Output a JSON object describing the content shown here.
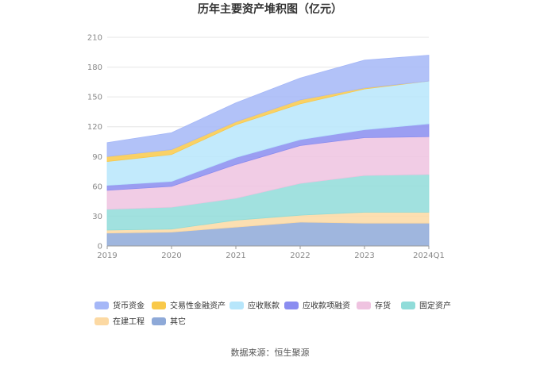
{
  "chart_data": {
    "type": "area",
    "stacked": true,
    "title": "历年主要资产堆积图（亿元）",
    "categories": [
      "2019",
      "2020",
      "2021",
      "2022",
      "2023",
      "2024Q1"
    ],
    "ylim": [
      0,
      210
    ],
    "yticks": [
      0,
      30,
      60,
      90,
      120,
      150,
      180,
      210
    ],
    "grid": true,
    "legend_position": "bottom",
    "series": [
      {
        "name": "其它",
        "color": "#8ea9d8",
        "values": [
          13,
          14,
          19,
          24,
          23,
          23
        ]
      },
      {
        "name": "在建工程",
        "color": "#fcd9a3",
        "values": [
          3,
          3,
          7,
          7,
          11,
          11
        ]
      },
      {
        "name": "固定资产",
        "color": "#90dcd9",
        "values": [
          21,
          22,
          22,
          32,
          37,
          38
        ]
      },
      {
        "name": "存货",
        "color": "#efc3e0",
        "values": [
          19,
          21,
          34,
          38,
          38,
          38
        ]
      },
      {
        "name": "应收款项融资",
        "color": "#8a8df0",
        "values": [
          5,
          5,
          7,
          6,
          8,
          13
        ]
      },
      {
        "name": "应收账款",
        "color": "#b7e6fb",
        "values": [
          24,
          27,
          33,
          36,
          41,
          43
        ]
      },
      {
        "name": "交易性金融资产",
        "color": "#f9c94a",
        "values": [
          5,
          5,
          3,
          4,
          1,
          0
        ]
      },
      {
        "name": "货币资金",
        "color": "#a5b7f7",
        "values": [
          14,
          17,
          19,
          22,
          28,
          26
        ]
      }
    ],
    "legend_order": [
      "货币资金",
      "交易性金融资产",
      "应收账款",
      "应收款项融资",
      "存货",
      "固定资产",
      "在建工程",
      "其它"
    ]
  },
  "source": "数据来源：恒生聚源"
}
